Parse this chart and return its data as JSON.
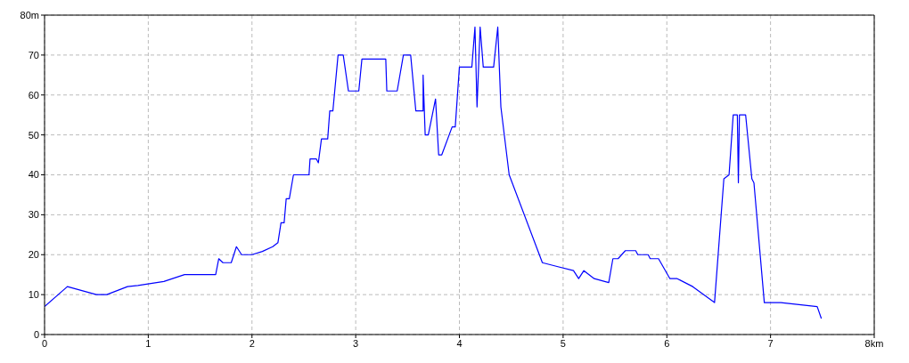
{
  "chart_data": {
    "type": "line",
    "x": [
      0,
      0.22,
      0.5,
      0.6,
      0.8,
      0.9,
      1.15,
      1.35,
      1.65,
      1.68,
      1.72,
      1.8,
      1.85,
      1.9,
      2.0,
      2.1,
      2.2,
      2.25,
      2.28,
      2.31,
      2.33,
      2.36,
      2.4,
      2.55,
      2.56,
      2.62,
      2.64,
      2.67,
      2.73,
      2.75,
      2.78,
      2.83,
      2.88,
      2.93,
      3.03,
      3.06,
      3.29,
      3.3,
      3.4,
      3.46,
      3.53,
      3.58,
      3.65,
      3.65,
      3.67,
      3.7,
      3.77,
      3.8,
      3.83,
      3.93,
      3.96,
      4.0,
      4.12,
      4.15,
      4.17,
      4.2,
      4.23,
      4.33,
      4.37,
      4.4,
      4.48,
      4.8,
      4.95,
      5.1,
      5.15,
      5.2,
      5.3,
      5.44,
      5.48,
      5.53,
      5.6,
      5.7,
      5.72,
      5.82,
      5.84,
      5.92,
      6.03,
      6.1,
      6.25,
      6.46,
      6.55,
      6.6,
      6.64,
      6.68,
      6.69,
      6.7,
      6.76,
      6.82,
      6.84,
      6.94,
      7.1,
      7.45,
      7.49
    ],
    "series": [
      {
        "color": "#0000ff",
        "values": [
          7,
          12,
          10,
          10,
          12,
          12.3,
          13.3,
          15,
          15,
          19,
          18,
          18,
          22,
          20,
          20,
          20.8,
          22,
          23,
          28,
          28,
          34,
          34,
          40,
          40,
          44,
          44,
          43,
          49,
          49,
          56,
          56,
          70,
          70,
          61,
          61,
          69,
          69,
          61,
          61,
          70,
          70,
          56,
          56,
          65,
          50,
          50,
          59,
          45,
          45,
          52,
          52,
          67,
          67,
          77,
          57,
          77,
          67,
          67,
          77,
          57,
          40,
          18,
          17,
          16,
          14,
          16,
          14,
          13,
          19,
          19,
          21,
          21,
          20,
          20,
          19,
          19,
          14,
          14,
          12,
          8,
          39,
          40,
          55,
          55,
          38,
          55,
          55,
          39,
          38,
          8,
          8,
          7,
          4
        ]
      }
    ],
    "xlim": [
      0,
      8
    ],
    "xticks": [
      0,
      1,
      2,
      3,
      4,
      5,
      6,
      7,
      {
        "value": 8,
        "label": "8km"
      }
    ],
    "ylim": [
      0,
      80
    ],
    "yticks": [
      0,
      10,
      20,
      30,
      40,
      50,
      60,
      70,
      {
        "value": 80,
        "label": "80m"
      }
    ],
    "grid": true,
    "marker": "none",
    "line_style": "solid"
  }
}
